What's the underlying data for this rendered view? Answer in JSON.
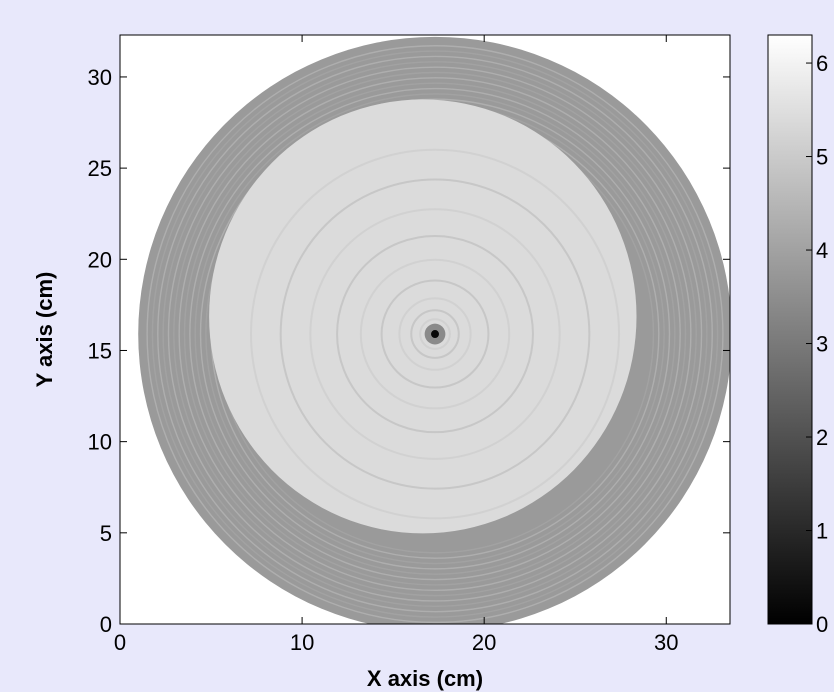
{
  "chart_data": {
    "type": "heatmap",
    "title": "",
    "xlabel": "X axis (cm)",
    "ylabel": "Y axis (cm)",
    "xlim": [
      0,
      33.5
    ],
    "ylim": [
      0,
      32.3
    ],
    "x_ticks": [
      0,
      10,
      20,
      30
    ],
    "y_ticks": [
      0,
      5,
      10,
      15,
      20,
      25,
      30
    ],
    "x_tick_labels": [
      "0",
      "10",
      "20",
      "30"
    ],
    "y_tick_labels": [
      "0",
      "5",
      "10",
      "15",
      "20",
      "25",
      "30"
    ],
    "colormap": "gray",
    "colorbar": {
      "range": [
        0,
        6.3
      ],
      "ticks": [
        0,
        1,
        2,
        3,
        4,
        5,
        6
      ],
      "tick_labels": [
        "0",
        "1",
        "2",
        "3",
        "4",
        "5",
        "6"
      ]
    },
    "sample": {
      "shape": "disc",
      "center": [
        17.3,
        15.9
      ],
      "radius": 16.3,
      "outer_ring_value": 3.8,
      "inner_region_value": 5.4,
      "central_defect_value": 0.2
    },
    "grid": false
  },
  "colors": {
    "page_background": "#e8e8fb",
    "axes_background": "#ffffff"
  }
}
